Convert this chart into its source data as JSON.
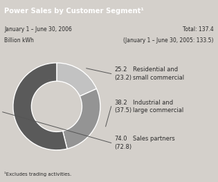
{
  "title": "Power Sales by Customer Segment¹",
  "date_left1": "January 1 – June 30, 2006",
  "date_left2": "Billion kWh",
  "total_right1": "Total: 137.4",
  "total_right2": "(January 1 – June 30, 2005: 133.5)",
  "footnote": "¹Excludes trading activities.",
  "segments": [
    {
      "label1": "Residential and",
      "label2": "small commercial",
      "value": 25.2,
      "prev_value": "(23.2)",
      "color": "#c2c2c2"
    },
    {
      "label1": "Industrial and",
      "label2": "large commercial",
      "value": 38.2,
      "prev_value": "(37.5)",
      "color": "#949494"
    },
    {
      "label1": "Sales partners",
      "label2": "",
      "value": 74.0,
      "prev_value": "(72.8)",
      "color": "#5a5a5a"
    }
  ],
  "bg_color": "#d4d0cb",
  "header_bg": "#7a7672",
  "header_text_color": "#ffffff",
  "body_bg": "#e8e5e0",
  "footer_bg": "#c8c5c0",
  "text_color": "#2a2a2a",
  "white_box": "#ffffff"
}
